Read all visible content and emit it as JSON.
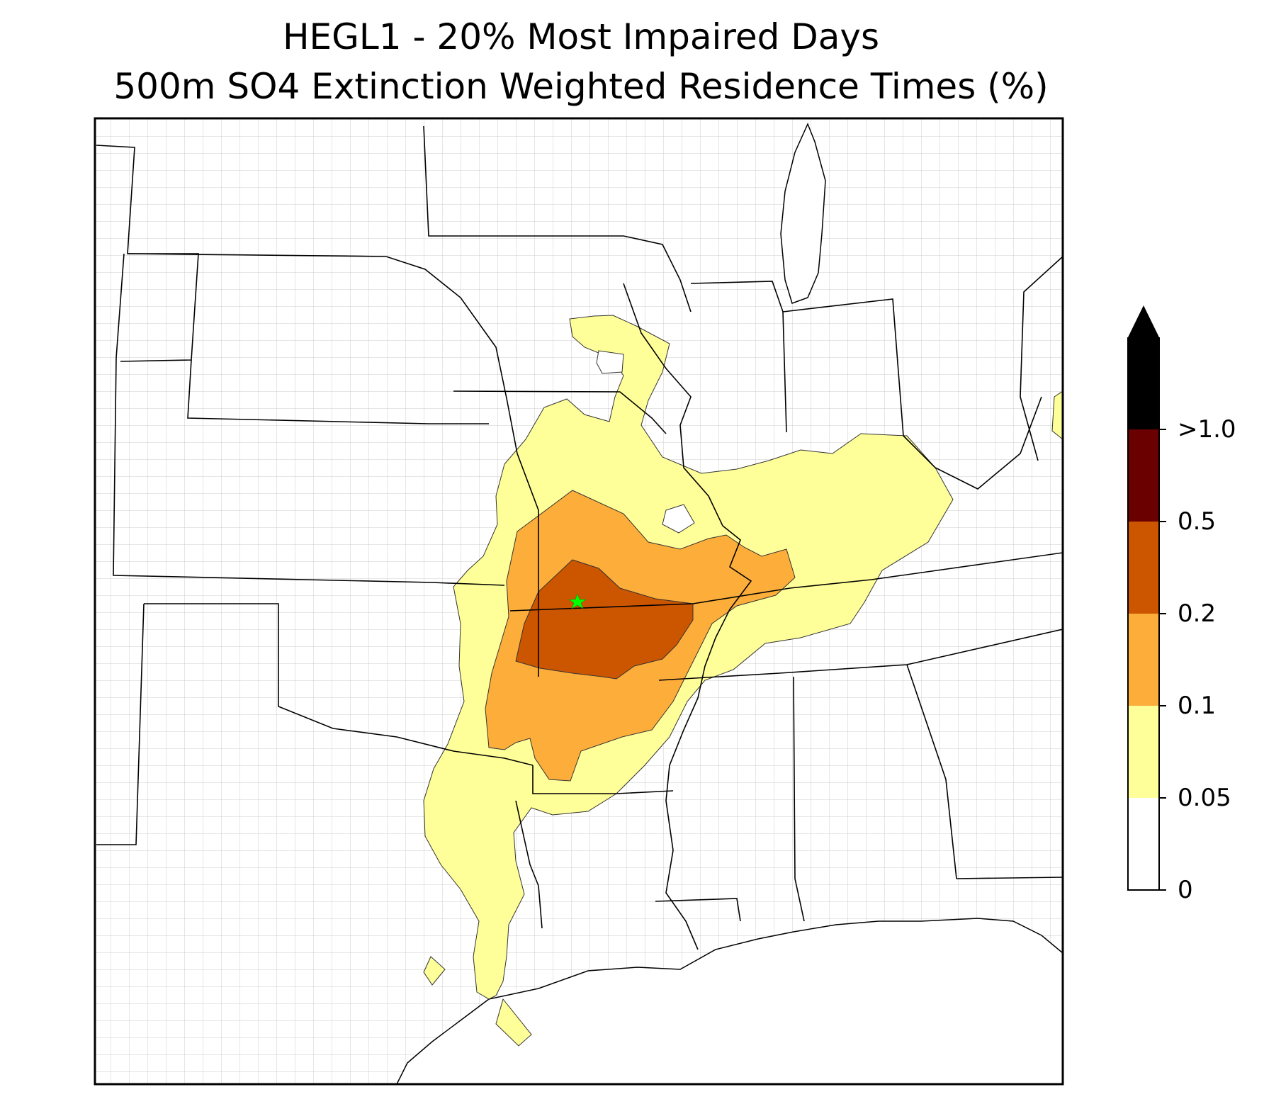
{
  "figure": {
    "title_line1": "HEGL1 - 20% Most Impaired Days",
    "title_line2": "500m SO4 Extinction Weighted Residence Times (%)"
  },
  "map": {
    "site_marker": {
      "icon": "star-icon",
      "color": "#00ff00"
    },
    "boundary_color": "#000000",
    "county_line_color": "#a0a0a0"
  },
  "legend": {
    "levels": [
      {
        "label": "0",
        "color": "#ffffff"
      },
      {
        "label": "0.05",
        "color": "#ffff99"
      },
      {
        "label": "0.1",
        "color": "#fdae3a"
      },
      {
        "label": "0.2",
        "color": "#cc5500"
      },
      {
        "label": "0.5",
        "color": "#6b0000"
      },
      {
        "label": ">1.0",
        "color": "#000000"
      }
    ],
    "extend_arrow_color": "#000000"
  }
}
